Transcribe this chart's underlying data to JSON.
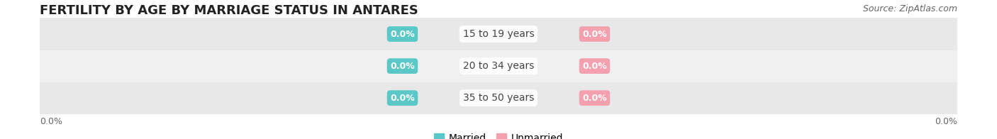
{
  "title": "FERTILITY BY AGE BY MARRIAGE STATUS IN ANTARES",
  "source": "Source: ZipAtlas.com",
  "categories": [
    "15 to 19 years",
    "20 to 34 years",
    "35 to 50 years"
  ],
  "married_values": [
    0.0,
    0.0,
    0.0
  ],
  "unmarried_values": [
    0.0,
    0.0,
    0.0
  ],
  "married_color": "#5bc8c8",
  "unmarried_color": "#f4a0ae",
  "bar_bg_color": "#e8e8e8",
  "bar_bg_color2": "#f0f0f0",
  "title_fontsize": 13,
  "source_fontsize": 9,
  "legend_fontsize": 10,
  "cat_fontsize": 10,
  "badge_fontsize": 9,
  "tick_fontsize": 9,
  "background_color": "#ffffff"
}
